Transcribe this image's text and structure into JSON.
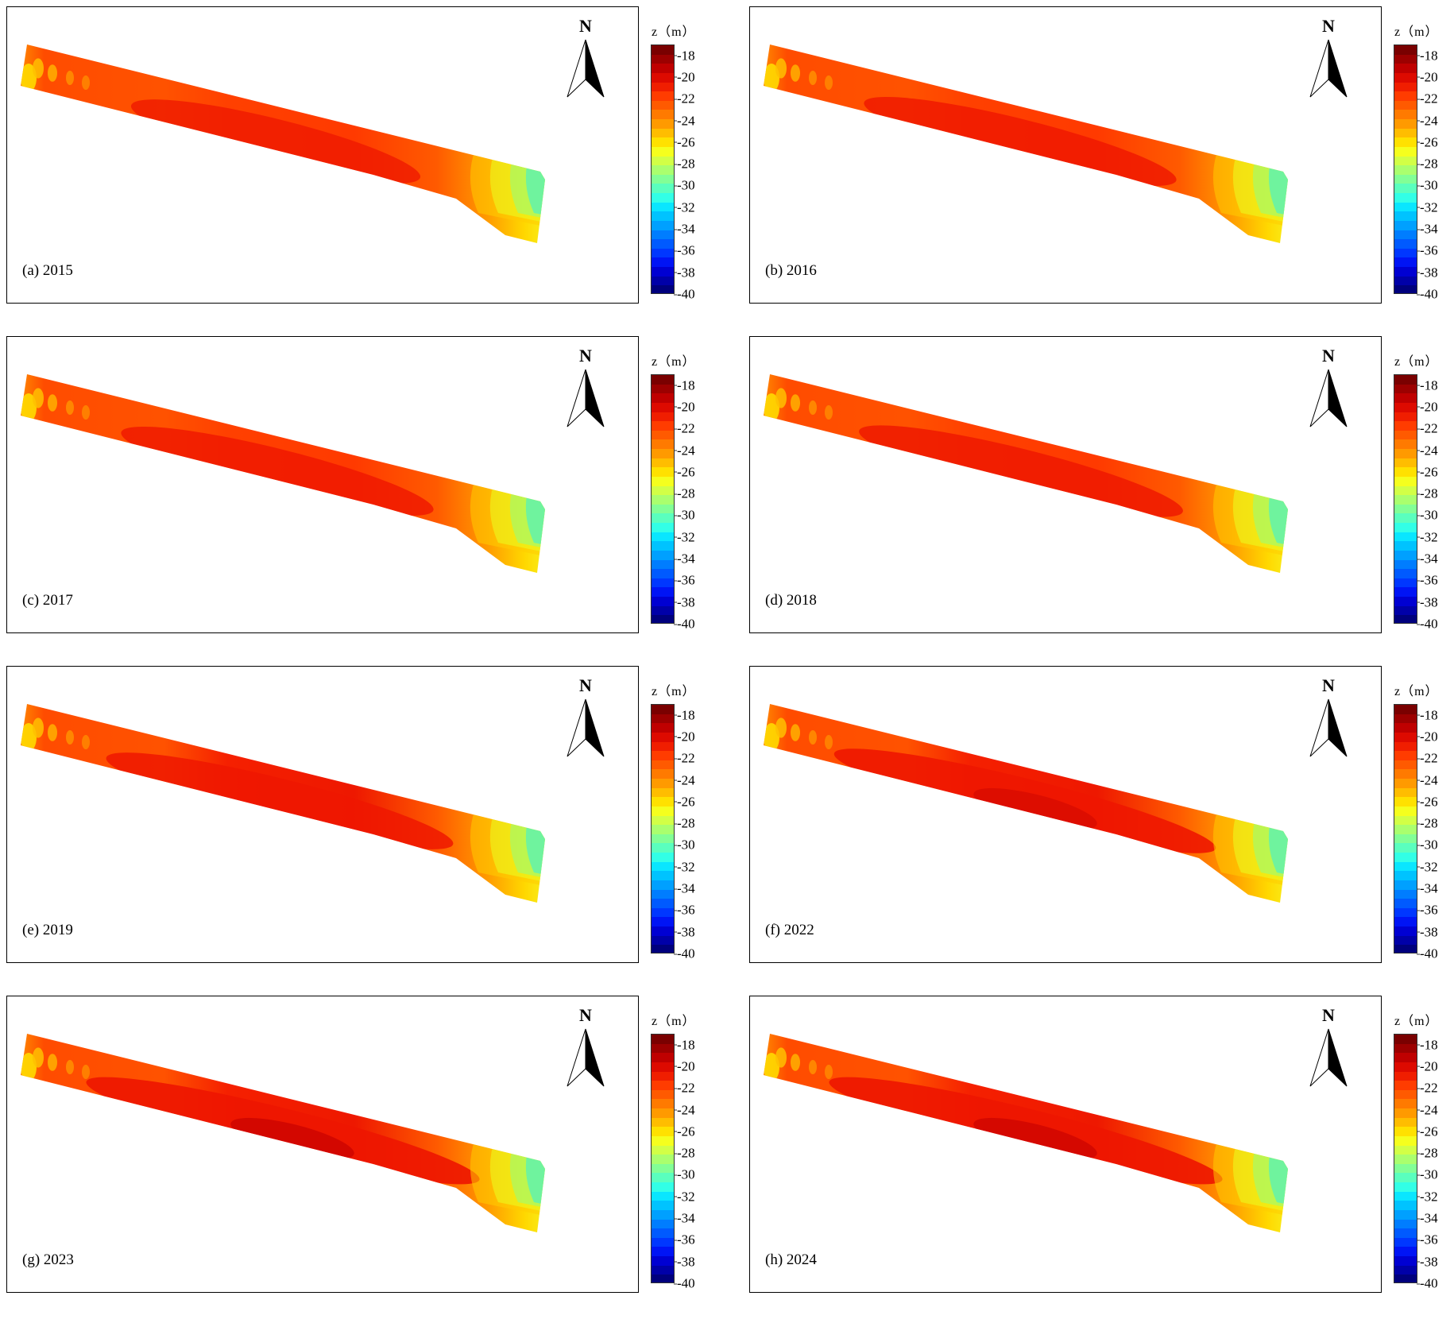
{
  "north_label": "N",
  "colorbar": {
    "unit_label": "z（m）",
    "ticks": [
      "-18",
      "-20",
      "-22",
      "-24",
      "-26",
      "-28",
      "-30",
      "-32",
      "-34",
      "-36",
      "-38",
      "-40"
    ],
    "range": [
      -40,
      -17
    ],
    "colors_top_to_bottom": [
      "#7a0000",
      "#9c0000",
      "#bf0000",
      "#dd0a00",
      "#f01e00",
      "#ff3c00",
      "#ff5a00",
      "#ff7a00",
      "#ff9a00",
      "#ffbd00",
      "#ffe100",
      "#f5ff1e",
      "#d2ff46",
      "#aaff6e",
      "#82ff96",
      "#5affbe",
      "#32ffe6",
      "#0ae6ff",
      "#00c3ff",
      "#00a0ff",
      "#007dff",
      "#005aff",
      "#0037ff",
      "#0014f5",
      "#0000d2",
      "#0000a8",
      "#00007d"
    ]
  },
  "panels": [
    {
      "label": "(a) 2015"
    },
    {
      "label": "(b) 2016"
    },
    {
      "label": "(c) 2017"
    },
    {
      "label": "(d) 2018"
    },
    {
      "label": "(e) 2019"
    },
    {
      "label": "(f) 2022"
    },
    {
      "label": "(g) 2023"
    },
    {
      "label": "(h) 2024"
    }
  ]
}
